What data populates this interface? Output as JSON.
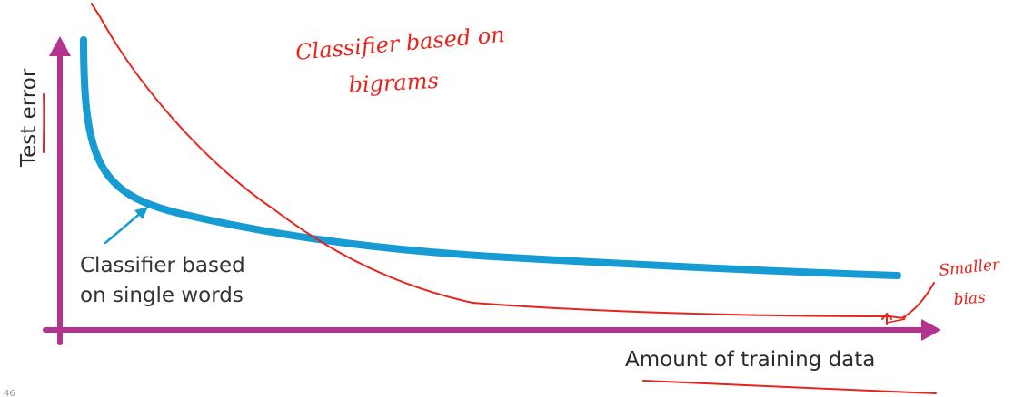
{
  "axes": {
    "y_label": "Test error",
    "x_label": "Amount of training data",
    "color": "#b3338f"
  },
  "curves": {
    "single_words": {
      "color": "#169bd2",
      "label_line1": "Classifier based",
      "label_line2": "on single words"
    },
    "bigrams": {
      "color": "#e8231c"
    }
  },
  "annotations": {
    "bigrams_line1": "Classifier based on",
    "bigrams_line2": "bigrams",
    "bias_line1": "Smaller",
    "bias_line2": "bias",
    "color": "#e8231c"
  },
  "slide": {
    "page_number": "46"
  }
}
